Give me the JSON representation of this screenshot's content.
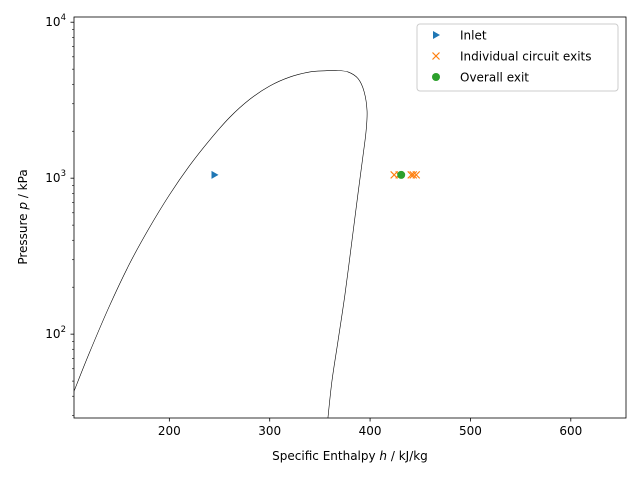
{
  "chart_data": {
    "type": "scatter",
    "xlabel": "Specific Enthalpy h / kJ/kg",
    "xlabel_parts": {
      "pre": "Specific Enthalpy ",
      "var": "h",
      "post": " / kJ/kg"
    },
    "ylabel": "Pressure p / kPa",
    "ylabel_parts": {
      "pre": "Pressure ",
      "var": "p",
      "post": " / kPa"
    },
    "xlim": [
      105,
      655
    ],
    "ylim": [
      29,
      10800
    ],
    "yscale": "log",
    "x_ticks": [
      200,
      300,
      400,
      500,
      600
    ],
    "x_tick_labels": [
      "200",
      "300",
      "400",
      "500",
      "600"
    ],
    "y_ticks": [
      100,
      1000,
      10000
    ],
    "y_tick_labels": [
      {
        "base": "10",
        "exp": "2"
      },
      {
        "base": "10",
        "exp": "3"
      },
      {
        "base": "10",
        "exp": "4"
      }
    ],
    "legend": "top-right",
    "grid": false,
    "dome": {
      "color": "#000000",
      "saturated_liquid": [
        [
          105,
          43
        ],
        [
          120,
          75
        ],
        [
          140,
          150
        ],
        [
          160,
          280
        ],
        [
          180,
          480
        ],
        [
          200,
          780
        ],
        [
          220,
          1200
        ],
        [
          240,
          1750
        ],
        [
          260,
          2450
        ],
        [
          280,
          3200
        ],
        [
          300,
          3900
        ],
        [
          320,
          4450
        ],
        [
          340,
          4800
        ],
        [
          355,
          4880
        ],
        [
          366,
          4900
        ]
      ],
      "saturated_vapor": [
        [
          366,
          4900
        ],
        [
          378,
          4800
        ],
        [
          388,
          4350
        ],
        [
          394,
          3600
        ],
        [
          397,
          2700
        ],
        [
          396,
          2000
        ],
        [
          393,
          1400
        ],
        [
          388,
          800
        ],
        [
          382,
          400
        ],
        [
          375,
          180
        ],
        [
          368,
          90
        ],
        [
          362,
          50
        ],
        [
          358,
          29
        ]
      ]
    },
    "series": [
      {
        "name": "Inlet",
        "marker": "triangle-right",
        "color": "#1f77b4",
        "points": [
          [
            245,
            1050
          ]
        ]
      },
      {
        "name": "Individual circuit exits",
        "marker": "x",
        "color": "#ff7f0e",
        "points": [
          [
            424,
            1050
          ],
          [
            429,
            1050
          ],
          [
            441,
            1050
          ],
          [
            443,
            1050
          ],
          [
            446,
            1050
          ]
        ]
      },
      {
        "name": "Overall exit",
        "marker": "circle",
        "color": "#2ca02c",
        "points": [
          [
            431,
            1050
          ]
        ]
      }
    ]
  }
}
